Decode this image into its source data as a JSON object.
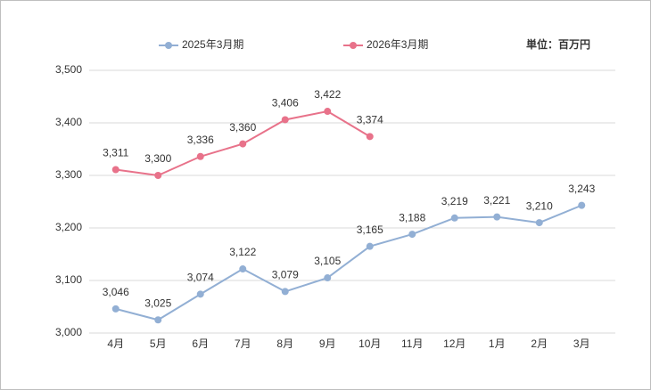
{
  "chart_data": {
    "type": "line",
    "annotation": "単位：百万円",
    "categories": [
      "4月",
      "5月",
      "6月",
      "7月",
      "8月",
      "9月",
      "10月",
      "11月",
      "12月",
      "1月",
      "2月",
      "3月"
    ],
    "series": [
      {
        "name": "2025年3月期",
        "color": "#92afd4",
        "values": [
          3046,
          3025,
          3074,
          3122,
          3079,
          3105,
          3165,
          3188,
          3219,
          3221,
          3210,
          3243
        ],
        "value_labels": [
          "3,046",
          "3,025",
          "3,074",
          "3,122",
          "3,079",
          "3,105",
          "3,165",
          "3,188",
          "3,219",
          "3,221",
          "3,210",
          "3,243"
        ]
      },
      {
        "name": "2026年3月期",
        "color": "#e8728a",
        "values": [
          3311,
          3300,
          3336,
          3360,
          3406,
          3422,
          3374,
          null,
          null,
          null,
          null,
          null
        ],
        "value_labels": [
          "3,311",
          "3,300",
          "3,336",
          "3,360",
          "3,406",
          "3,422",
          "3,374",
          null,
          null,
          null,
          null,
          null
        ]
      }
    ],
    "ylim": [
      3000,
      3500
    ],
    "yticks": [
      {
        "value": 3000,
        "label": "3,000"
      },
      {
        "value": 3100,
        "label": "3,100"
      },
      {
        "value": 3200,
        "label": "3,200"
      },
      {
        "value": 3300,
        "label": "3,300"
      },
      {
        "value": 3400,
        "label": "3,400"
      },
      {
        "value": 3500,
        "label": "3,500"
      }
    ],
    "grid": true,
    "legend": "top"
  }
}
